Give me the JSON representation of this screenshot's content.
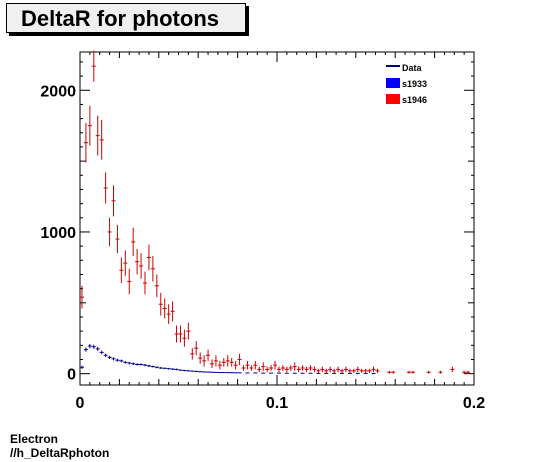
{
  "chart_data": {
    "type": "scatter",
    "title": "DeltaR for photons",
    "xlabel": "",
    "ylabel": "",
    "xlim": [
      0,
      0.2
    ],
    "ylim": [
      -80,
      2270
    ],
    "xticks": [
      {
        "value": 0,
        "label": "0"
      },
      {
        "value": 0.1,
        "label": "0.1"
      },
      {
        "value": 0.2,
        "label": "0.2"
      }
    ],
    "yticks": [
      {
        "value": 0,
        "label": "0"
      },
      {
        "value": 1000,
        "label": "1000"
      },
      {
        "value": 2000,
        "label": "2000"
      }
    ],
    "grid": false,
    "legend_position": "top-right",
    "legend": [
      {
        "name": "Data",
        "color": "#000080",
        "style": "line"
      },
      {
        "name": "s1933",
        "color": "#0000ff",
        "style": "box"
      },
      {
        "name": "s1946",
        "color": "#ff0000",
        "style": "box"
      }
    ],
    "series": [
      {
        "name": "s1946",
        "color": "#cc0000",
        "points": [
          {
            "x": 0.001,
            "y": 540,
            "err": 80
          },
          {
            "x": 0.003,
            "y": 1630,
            "err": 140
          },
          {
            "x": 0.005,
            "y": 1750,
            "err": 140
          },
          {
            "x": 0.007,
            "y": 2170,
            "err": 110
          },
          {
            "x": 0.009,
            "y": 1680,
            "err": 140
          },
          {
            "x": 0.011,
            "y": 1650,
            "err": 140
          },
          {
            "x": 0.013,
            "y": 1310,
            "err": 110
          },
          {
            "x": 0.015,
            "y": 1000,
            "err": 100
          },
          {
            "x": 0.017,
            "y": 1220,
            "err": 110
          },
          {
            "x": 0.019,
            "y": 950,
            "err": 100
          },
          {
            "x": 0.021,
            "y": 730,
            "err": 90
          },
          {
            "x": 0.023,
            "y": 780,
            "err": 90
          },
          {
            "x": 0.025,
            "y": 650,
            "err": 90
          },
          {
            "x": 0.027,
            "y": 930,
            "err": 100
          },
          {
            "x": 0.029,
            "y": 790,
            "err": 90
          },
          {
            "x": 0.031,
            "y": 760,
            "err": 90
          },
          {
            "x": 0.033,
            "y": 640,
            "err": 80
          },
          {
            "x": 0.035,
            "y": 820,
            "err": 90
          },
          {
            "x": 0.037,
            "y": 740,
            "err": 90
          },
          {
            "x": 0.039,
            "y": 620,
            "err": 80
          },
          {
            "x": 0.041,
            "y": 490,
            "err": 80
          },
          {
            "x": 0.043,
            "y": 460,
            "err": 70
          },
          {
            "x": 0.045,
            "y": 420,
            "err": 70
          },
          {
            "x": 0.047,
            "y": 440,
            "err": 70
          },
          {
            "x": 0.049,
            "y": 280,
            "err": 60
          },
          {
            "x": 0.051,
            "y": 280,
            "err": 60
          },
          {
            "x": 0.053,
            "y": 250,
            "err": 60
          },
          {
            "x": 0.055,
            "y": 300,
            "err": 60
          },
          {
            "x": 0.057,
            "y": 140,
            "err": 40
          },
          {
            "x": 0.059,
            "y": 180,
            "err": 50
          },
          {
            "x": 0.061,
            "y": 110,
            "err": 40
          },
          {
            "x": 0.063,
            "y": 90,
            "err": 40
          },
          {
            "x": 0.065,
            "y": 130,
            "err": 40
          },
          {
            "x": 0.067,
            "y": 70,
            "err": 30
          },
          {
            "x": 0.069,
            "y": 90,
            "err": 40
          },
          {
            "x": 0.071,
            "y": 60,
            "err": 30
          },
          {
            "x": 0.073,
            "y": 80,
            "err": 30
          },
          {
            "x": 0.075,
            "y": 90,
            "err": 40
          },
          {
            "x": 0.077,
            "y": 80,
            "err": 30
          },
          {
            "x": 0.079,
            "y": 60,
            "err": 30
          },
          {
            "x": 0.081,
            "y": 100,
            "err": 40
          },
          {
            "x": 0.083,
            "y": 40,
            "err": 20
          },
          {
            "x": 0.085,
            "y": 60,
            "err": 30
          },
          {
            "x": 0.087,
            "y": 40,
            "err": 20
          },
          {
            "x": 0.089,
            "y": 60,
            "err": 30
          },
          {
            "x": 0.091,
            "y": 30,
            "err": 20
          },
          {
            "x": 0.093,
            "y": 50,
            "err": 30
          },
          {
            "x": 0.095,
            "y": 30,
            "err": 20
          },
          {
            "x": 0.097,
            "y": 40,
            "err": 20
          },
          {
            "x": 0.099,
            "y": 60,
            "err": 30
          },
          {
            "x": 0.101,
            "y": 30,
            "err": 20
          },
          {
            "x": 0.103,
            "y": 40,
            "err": 20
          },
          {
            "x": 0.105,
            "y": 30,
            "err": 20
          },
          {
            "x": 0.107,
            "y": 40,
            "err": 20
          },
          {
            "x": 0.109,
            "y": 50,
            "err": 30
          },
          {
            "x": 0.111,
            "y": 30,
            "err": 20
          },
          {
            "x": 0.113,
            "y": 40,
            "err": 20
          },
          {
            "x": 0.115,
            "y": 30,
            "err": 20
          },
          {
            "x": 0.117,
            "y": 40,
            "err": 20
          },
          {
            "x": 0.119,
            "y": 30,
            "err": 20
          },
          {
            "x": 0.121,
            "y": 20,
            "err": 15
          },
          {
            "x": 0.123,
            "y": 30,
            "err": 20
          },
          {
            "x": 0.125,
            "y": 20,
            "err": 15
          },
          {
            "x": 0.127,
            "y": 30,
            "err": 20
          },
          {
            "x": 0.129,
            "y": 20,
            "err": 15
          },
          {
            "x": 0.131,
            "y": 30,
            "err": 20
          },
          {
            "x": 0.133,
            "y": 20,
            "err": 15
          },
          {
            "x": 0.135,
            "y": 30,
            "err": 20
          },
          {
            "x": 0.137,
            "y": 20,
            "err": 15
          },
          {
            "x": 0.139,
            "y": 20,
            "err": 15
          },
          {
            "x": 0.141,
            "y": 30,
            "err": 20
          },
          {
            "x": 0.143,
            "y": 20,
            "err": 15
          },
          {
            "x": 0.145,
            "y": 20,
            "err": 15
          },
          {
            "x": 0.147,
            "y": 20,
            "err": 15
          },
          {
            "x": 0.149,
            "y": 30,
            "err": 20
          },
          {
            "x": 0.151,
            "y": 20,
            "err": 15
          },
          {
            "x": 0.157,
            "y": 10,
            "err": 10
          },
          {
            "x": 0.159,
            "y": 10,
            "err": 10
          },
          {
            "x": 0.167,
            "y": 10,
            "err": 10
          },
          {
            "x": 0.169,
            "y": 10,
            "err": 10
          },
          {
            "x": 0.177,
            "y": 10,
            "err": 10
          },
          {
            "x": 0.183,
            "y": 10,
            "err": 10
          },
          {
            "x": 0.189,
            "y": 30,
            "err": 20
          },
          {
            "x": 0.195,
            "y": 10,
            "err": 10
          },
          {
            "x": 0.197,
            "y": 10,
            "err": 10
          }
        ]
      },
      {
        "name": "s1933",
        "color": "#00008b",
        "points": [
          {
            "x": 0.001,
            "y": 45,
            "err": 12
          },
          {
            "x": 0.003,
            "y": 170,
            "err": 15
          },
          {
            "x": 0.005,
            "y": 195,
            "err": 15
          },
          {
            "x": 0.007,
            "y": 190,
            "err": 15
          },
          {
            "x": 0.009,
            "y": 175,
            "err": 14
          },
          {
            "x": 0.011,
            "y": 150,
            "err": 13
          },
          {
            "x": 0.013,
            "y": 130,
            "err": 12
          },
          {
            "x": 0.015,
            "y": 115,
            "err": 11
          },
          {
            "x": 0.017,
            "y": 105,
            "err": 11
          },
          {
            "x": 0.019,
            "y": 95,
            "err": 10
          },
          {
            "x": 0.021,
            "y": 90,
            "err": 10
          },
          {
            "x": 0.023,
            "y": 80,
            "err": 9
          },
          {
            "x": 0.025,
            "y": 75,
            "err": 9
          },
          {
            "x": 0.027,
            "y": 70,
            "err": 9
          },
          {
            "x": 0.029,
            "y": 65,
            "err": 8
          },
          {
            "x": 0.031,
            "y": 65,
            "err": 8
          },
          {
            "x": 0.033,
            "y": 60,
            "err": 8
          },
          {
            "x": 0.035,
            "y": 55,
            "err": 8
          },
          {
            "x": 0.037,
            "y": 50,
            "err": 7
          },
          {
            "x": 0.039,
            "y": 45,
            "err": 7
          },
          {
            "x": 0.041,
            "y": 40,
            "err": 7
          },
          {
            "x": 0.043,
            "y": 38,
            "err": 6
          },
          {
            "x": 0.045,
            "y": 35,
            "err": 6
          },
          {
            "x": 0.047,
            "y": 32,
            "err": 6
          },
          {
            "x": 0.049,
            "y": 30,
            "err": 6
          },
          {
            "x": 0.051,
            "y": 25,
            "err": 5
          },
          {
            "x": 0.053,
            "y": 22,
            "err": 5
          },
          {
            "x": 0.055,
            "y": 20,
            "err": 5
          },
          {
            "x": 0.057,
            "y": 18,
            "err": 4
          },
          {
            "x": 0.059,
            "y": 16,
            "err": 4
          },
          {
            "x": 0.061,
            "y": 14,
            "err": 4
          },
          {
            "x": 0.063,
            "y": 12,
            "err": 4
          },
          {
            "x": 0.065,
            "y": 11,
            "err": 3
          },
          {
            "x": 0.067,
            "y": 10,
            "err": 3
          },
          {
            "x": 0.069,
            "y": 9,
            "err": 3
          },
          {
            "x": 0.071,
            "y": 8,
            "err": 3
          },
          {
            "x": 0.073,
            "y": 8,
            "err": 3
          },
          {
            "x": 0.075,
            "y": 7,
            "err": 3
          },
          {
            "x": 0.077,
            "y": 7,
            "err": 3
          },
          {
            "x": 0.079,
            "y": 6,
            "err": 2
          },
          {
            "x": 0.081,
            "y": 6,
            "err": 2
          },
          {
            "x": 0.085,
            "y": 5,
            "err": 2
          },
          {
            "x": 0.089,
            "y": 5,
            "err": 2
          },
          {
            "x": 0.093,
            "y": 4,
            "err": 2
          },
          {
            "x": 0.097,
            "y": 4,
            "err": 2
          },
          {
            "x": 0.101,
            "y": 4,
            "err": 2
          },
          {
            "x": 0.105,
            "y": 3,
            "err": 2
          },
          {
            "x": 0.109,
            "y": 3,
            "err": 2
          },
          {
            "x": 0.113,
            "y": 3,
            "err": 2
          },
          {
            "x": 0.117,
            "y": 3,
            "err": 2
          },
          {
            "x": 0.121,
            "y": 2,
            "err": 1
          },
          {
            "x": 0.125,
            "y": 2,
            "err": 1
          },
          {
            "x": 0.129,
            "y": 2,
            "err": 1
          },
          {
            "x": 0.133,
            "y": 2,
            "err": 1
          },
          {
            "x": 0.137,
            "y": 2,
            "err": 1
          },
          {
            "x": 0.141,
            "y": 2,
            "err": 1
          },
          {
            "x": 0.145,
            "y": 2,
            "err": 1
          },
          {
            "x": 0.149,
            "y": 1,
            "err": 1
          }
        ]
      }
    ]
  },
  "footer": {
    "line1": "Electron",
    "line2": "//h_DeltaRphoton"
  }
}
